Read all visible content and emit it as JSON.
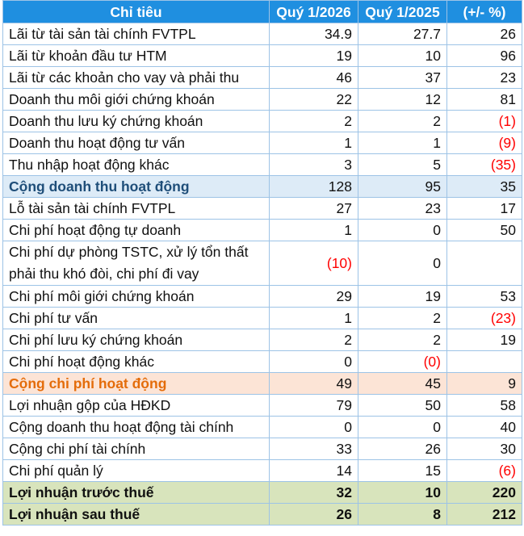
{
  "table": {
    "headers": [
      "Chỉ tiêu",
      "Quý 1/2026",
      "Quý 1/2025",
      "(+/- %)"
    ],
    "rows": [
      {
        "label": "Lãi từ tài sản tài chính FVTPL",
        "q2026": "34.9",
        "q2025": "27.7",
        "change": "26",
        "style": "normal",
        "neg": [
          false,
          false,
          false
        ]
      },
      {
        "label": "Lãi từ khoản đầu tư HTM",
        "q2026": "19",
        "q2025": "10",
        "change": "96",
        "style": "normal",
        "neg": [
          false,
          false,
          false
        ]
      },
      {
        "label": "Lãi từ các khoản cho vay và phải thu",
        "q2026": "46",
        "q2025": "37",
        "change": "23",
        "style": "normal",
        "neg": [
          false,
          false,
          false
        ]
      },
      {
        "label": "Doanh thu môi giới chứng khoán",
        "q2026": "22",
        "q2025": "12",
        "change": "81",
        "style": "normal",
        "neg": [
          false,
          false,
          false
        ]
      },
      {
        "label": "Doanh thu lưu ký chứng khoán",
        "q2026": "2",
        "q2025": "2",
        "change": "(1)",
        "style": "normal",
        "neg": [
          false,
          false,
          true
        ]
      },
      {
        "label": "Doanh thu hoạt động tư vấn",
        "q2026": "1",
        "q2025": "1",
        "change": "(9)",
        "style": "normal",
        "neg": [
          false,
          false,
          true
        ]
      },
      {
        "label": "Thu nhập hoạt động khác",
        "q2026": "3",
        "q2025": "5",
        "change": "(35)",
        "style": "normal",
        "neg": [
          false,
          false,
          true
        ]
      },
      {
        "label": "Cộng doanh thu hoạt động",
        "q2026": "128",
        "q2025": "95",
        "change": "35",
        "style": "rev",
        "neg": [
          false,
          false,
          false
        ]
      },
      {
        "label": "Lỗ tài sản tài chính FVTPL",
        "q2026": "27",
        "q2025": "23",
        "change": "17",
        "style": "normal",
        "neg": [
          false,
          false,
          false
        ]
      },
      {
        "label": "Chi phí hoạt động tự doanh",
        "q2026": "1",
        "q2025": "0",
        "change": "50",
        "style": "normal",
        "neg": [
          false,
          false,
          false
        ]
      },
      {
        "label": "Chi phí dự phòng TSTC, xử lý tổn thất phải thu khó đòi, chi phí đi vay",
        "q2026": "(10)",
        "q2025": "0",
        "change": "",
        "style": "wrap",
        "neg": [
          true,
          false,
          false
        ]
      },
      {
        "label": "Chi phí môi giới chứng khoán",
        "q2026": "29",
        "q2025": "19",
        "change": "53",
        "style": "normal",
        "neg": [
          false,
          false,
          false
        ]
      },
      {
        "label": "Chi phí tư vấn",
        "q2026": "1",
        "q2025": "2",
        "change": "(23)",
        "style": "normal",
        "neg": [
          false,
          false,
          true
        ]
      },
      {
        "label": "Chi phí lưu ký chứng khoán",
        "q2026": "2",
        "q2025": "2",
        "change": "19",
        "style": "normal",
        "neg": [
          false,
          false,
          false
        ]
      },
      {
        "label": "Chi phí hoạt động khác",
        "q2026": "0",
        "q2025": "(0)",
        "change": "",
        "style": "normal",
        "neg": [
          false,
          true,
          false
        ]
      },
      {
        "label": "Cộng chi phí hoạt động",
        "q2026": "49",
        "q2025": "45",
        "change": "9",
        "style": "exp",
        "neg": [
          false,
          false,
          false
        ]
      },
      {
        "label": "Lợi nhuận gộp của HĐKD",
        "q2026": "79",
        "q2025": "50",
        "change": "58",
        "style": "normal",
        "neg": [
          false,
          false,
          false
        ]
      },
      {
        "label": "Cộng doanh thu hoạt động tài chính",
        "q2026": "0",
        "q2025": "0",
        "change": "40",
        "style": "normal",
        "neg": [
          false,
          false,
          false
        ]
      },
      {
        "label": "Cộng chi phí tài chính",
        "q2026": "33",
        "q2025": "26",
        "change": "30",
        "style": "normal",
        "neg": [
          false,
          false,
          false
        ]
      },
      {
        "label": "Chi phí quản lý",
        "q2026": "14",
        "q2025": "15",
        "change": "(6)",
        "style": "normal",
        "neg": [
          false,
          false,
          true
        ]
      },
      {
        "label": "Lợi nhuận trước thuế",
        "q2026": "32",
        "q2025": "10",
        "change": "220",
        "style": "tot",
        "neg": [
          false,
          false,
          false
        ]
      },
      {
        "label": "Lợi nhuận sau thuế",
        "q2026": "26",
        "q2025": "8",
        "change": "212",
        "style": "tot",
        "neg": [
          false,
          false,
          false
        ]
      }
    ]
  },
  "colors": {
    "header_bg": "#1f8fe0",
    "revenue_total_bg": "#ddebf7",
    "revenue_total_text": "#1f4e79",
    "expense_total_bg": "#fce4d6",
    "expense_total_text": "#e46c0a",
    "profit_bg": "#d8e4bc",
    "negative_text": "#ff0000",
    "grid": "#9dc3e6"
  }
}
